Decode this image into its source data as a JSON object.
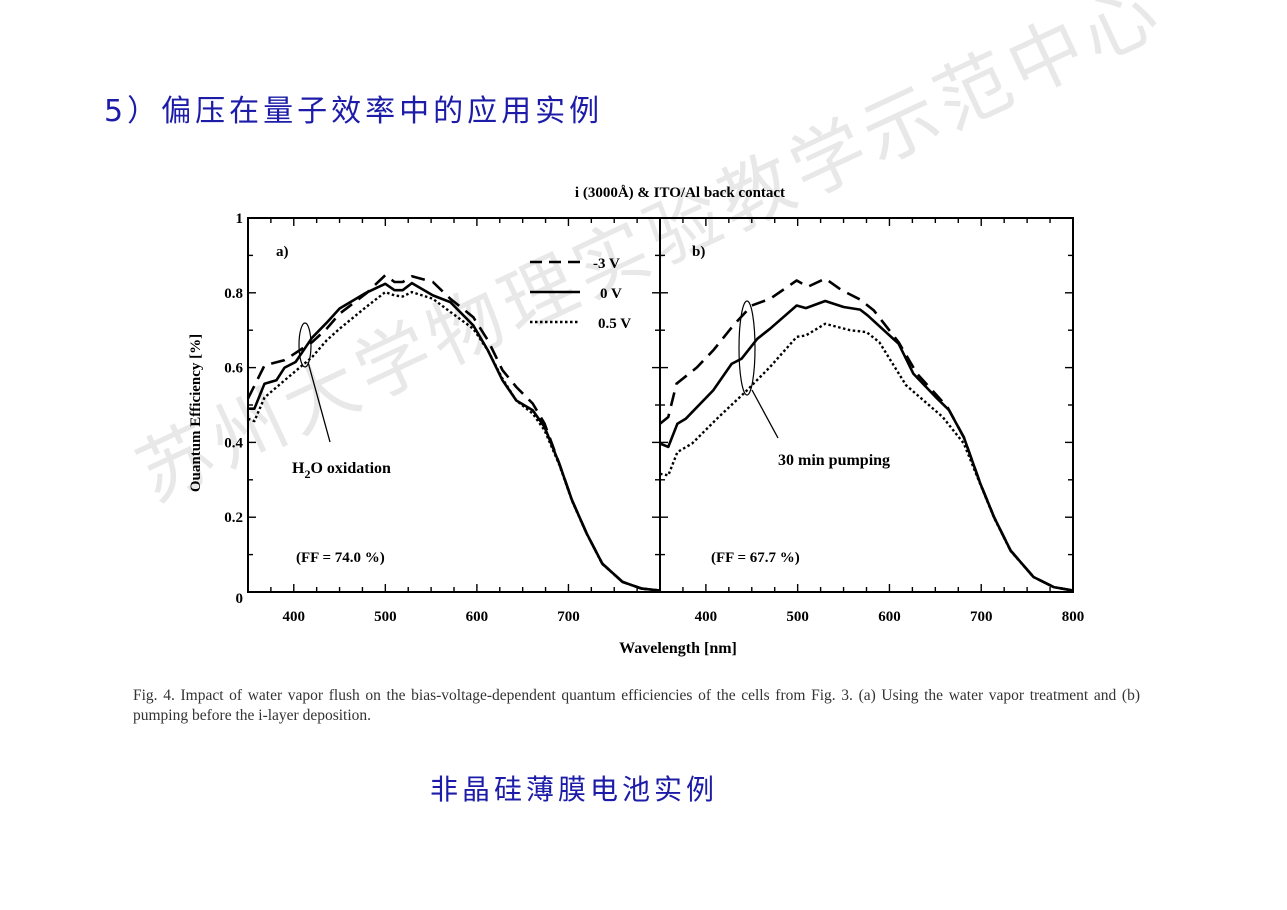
{
  "slide": {
    "title": "5）偏压在量子效率中的应用实例",
    "subtitle": "非晶硅薄膜电池实例",
    "caption": "Fig. 4. Impact of water vapor flush on the bias-voltage-dependent quantum efficiencies of the cells from Fig. 3. (a) Using the water vapor treatment and (b) pumping before the i-layer deposition.",
    "watermark": "苏州大学物理实验教学示范中心"
  },
  "chart_data": {
    "type": "line",
    "title": "i (3000Å) & ITO/Al back contact",
    "xlabel": "Wavelength [nm]",
    "ylabel": "Ouantum Efficiency [%]",
    "xlim": [
      350,
      800
    ],
    "ylim": [
      0,
      1
    ],
    "yticks": [
      0,
      0.2,
      0.4,
      0.6,
      0.8,
      1
    ],
    "ytick_labels": [
      "0",
      "0.2",
      "0.4",
      "0.6",
      "0.8",
      "1"
    ],
    "legend": {
      "placement": "top-right of panel a",
      "entries": [
        {
          "label": "-3 V",
          "style": "dashed"
        },
        {
          "label": "0 V",
          "style": "solid"
        },
        {
          "label": "0.5 V",
          "style": "dotted"
        }
      ]
    },
    "panels": [
      {
        "label": "a)",
        "xtick_labels": [
          "400",
          "500",
          "600",
          "700"
        ],
        "xticks": [
          400,
          500,
          600,
          700
        ],
        "annotation": "H2O oxidation",
        "annotation_main": "H",
        "annotation_sub": "2",
        "annotation_rest": "O oxidation",
        "ff": "(FF = 74.0 %)",
        "series": [
          {
            "name": "-3 V",
            "style": "dashed",
            "x": [
              350,
              368,
              390,
              420,
              436,
              450,
              479,
              500,
              510,
              519,
              529,
              552,
              571,
              596,
              612,
              628,
              643,
              661,
              674,
              690,
              704,
              720,
              737,
              759,
              780,
              800
            ],
            "y": [
              0.517,
              0.606,
              0.62,
              0.668,
              0.704,
              0.744,
              0.798,
              0.847,
              0.829,
              0.829,
              0.844,
              0.829,
              0.784,
              0.735,
              0.673,
              0.593,
              0.548,
              0.504,
              0.45,
              0.343,
              0.245,
              0.156,
              0.076,
              0.027,
              0.009,
              0.004
            ]
          },
          {
            "name": "0 V",
            "style": "solid",
            "x": [
              350,
              357,
              368,
              381,
              390,
              402,
              420,
              436,
              450,
              479,
              500,
              510,
              519,
              529,
              552,
              571,
              596,
              612,
              628,
              643,
              661,
              674,
              690,
              704,
              720,
              737,
              759,
              780,
              800
            ],
            "y": [
              0.49,
              0.49,
              0.557,
              0.566,
              0.6,
              0.615,
              0.68,
              0.72,
              0.758,
              0.8,
              0.824,
              0.807,
              0.807,
              0.826,
              0.793,
              0.775,
              0.713,
              0.646,
              0.566,
              0.512,
              0.486,
              0.441,
              0.343,
              0.245,
              0.156,
              0.076,
              0.027,
              0.009,
              0.004
            ]
          },
          {
            "name": "0.5 V",
            "style": "dotted",
            "x": [
              350,
              357,
              368,
              390,
              420,
              436,
              450,
              479,
              500,
              510,
              519,
              529,
              552,
              571,
              596,
              612,
              628,
              643,
              661,
              674,
              690,
              704,
              720,
              737,
              759,
              780,
              800
            ],
            "y": [
              0.463,
              0.457,
              0.52,
              0.566,
              0.628,
              0.673,
              0.704,
              0.762,
              0.802,
              0.793,
              0.79,
              0.802,
              0.784,
              0.749,
              0.704,
              0.646,
              0.57,
              0.512,
              0.477,
              0.432,
              0.34,
              0.243,
              0.155,
              0.075,
              0.027,
              0.009,
              0.004
            ]
          }
        ]
      },
      {
        "label": "b)",
        "xtick_labels": [
          "400",
          "500",
          "600",
          "700",
          "800"
        ],
        "xticks": [
          400,
          500,
          600,
          700,
          800
        ],
        "annotation": "30 min pumping",
        "ff": "(FF = 67.7 %)",
        "series": [
          {
            "name": "-3 V",
            "style": "dashed",
            "x": [
              350,
              359,
              368,
              390,
              408,
              430,
              450,
              470,
              499,
              511,
              530,
              548,
              568,
              583,
              610,
              630,
              663,
              681,
              699,
              714,
              732,
              757,
              779,
              800
            ],
            "y": [
              0.45,
              0.468,
              0.557,
              0.6,
              0.646,
              0.713,
              0.766,
              0.784,
              0.833,
              0.816,
              0.838,
              0.807,
              0.782,
              0.753,
              0.668,
              0.584,
              0.495,
              0.414,
              0.29,
              0.2,
              0.111,
              0.04,
              0.013,
              0.004
            ]
          },
          {
            "name": "0 V",
            "style": "solid",
            "x": [
              350,
              359,
              369,
              378,
              408,
              428,
              439,
              456,
              470,
              499,
              509,
              530,
              550,
              568,
              576,
              610,
              626,
              652,
              665,
              681,
              699,
              714,
              732,
              757,
              779,
              800
            ],
            "y": [
              0.397,
              0.388,
              0.45,
              0.463,
              0.539,
              0.61,
              0.624,
              0.677,
              0.704,
              0.766,
              0.759,
              0.778,
              0.762,
              0.755,
              0.74,
              0.664,
              0.584,
              0.517,
              0.486,
              0.414,
              0.29,
              0.2,
              0.111,
              0.04,
              0.013,
              0.004
            ]
          },
          {
            "name": "0.5 V",
            "style": "dotted",
            "x": [
              350,
              359,
              369,
              385,
              414,
              443,
              470,
              499,
              509,
              530,
              557,
              575,
              589,
              618,
              658,
              681,
              699,
              714,
              732,
              757,
              779,
              800
            ],
            "y": [
              0.316,
              0.312,
              0.374,
              0.397,
              0.468,
              0.535,
              0.602,
              0.682,
              0.686,
              0.717,
              0.7,
              0.695,
              0.668,
              0.553,
              0.468,
              0.397,
              0.288,
              0.198,
              0.11,
              0.04,
              0.013,
              0.004
            ]
          }
        ]
      }
    ]
  }
}
